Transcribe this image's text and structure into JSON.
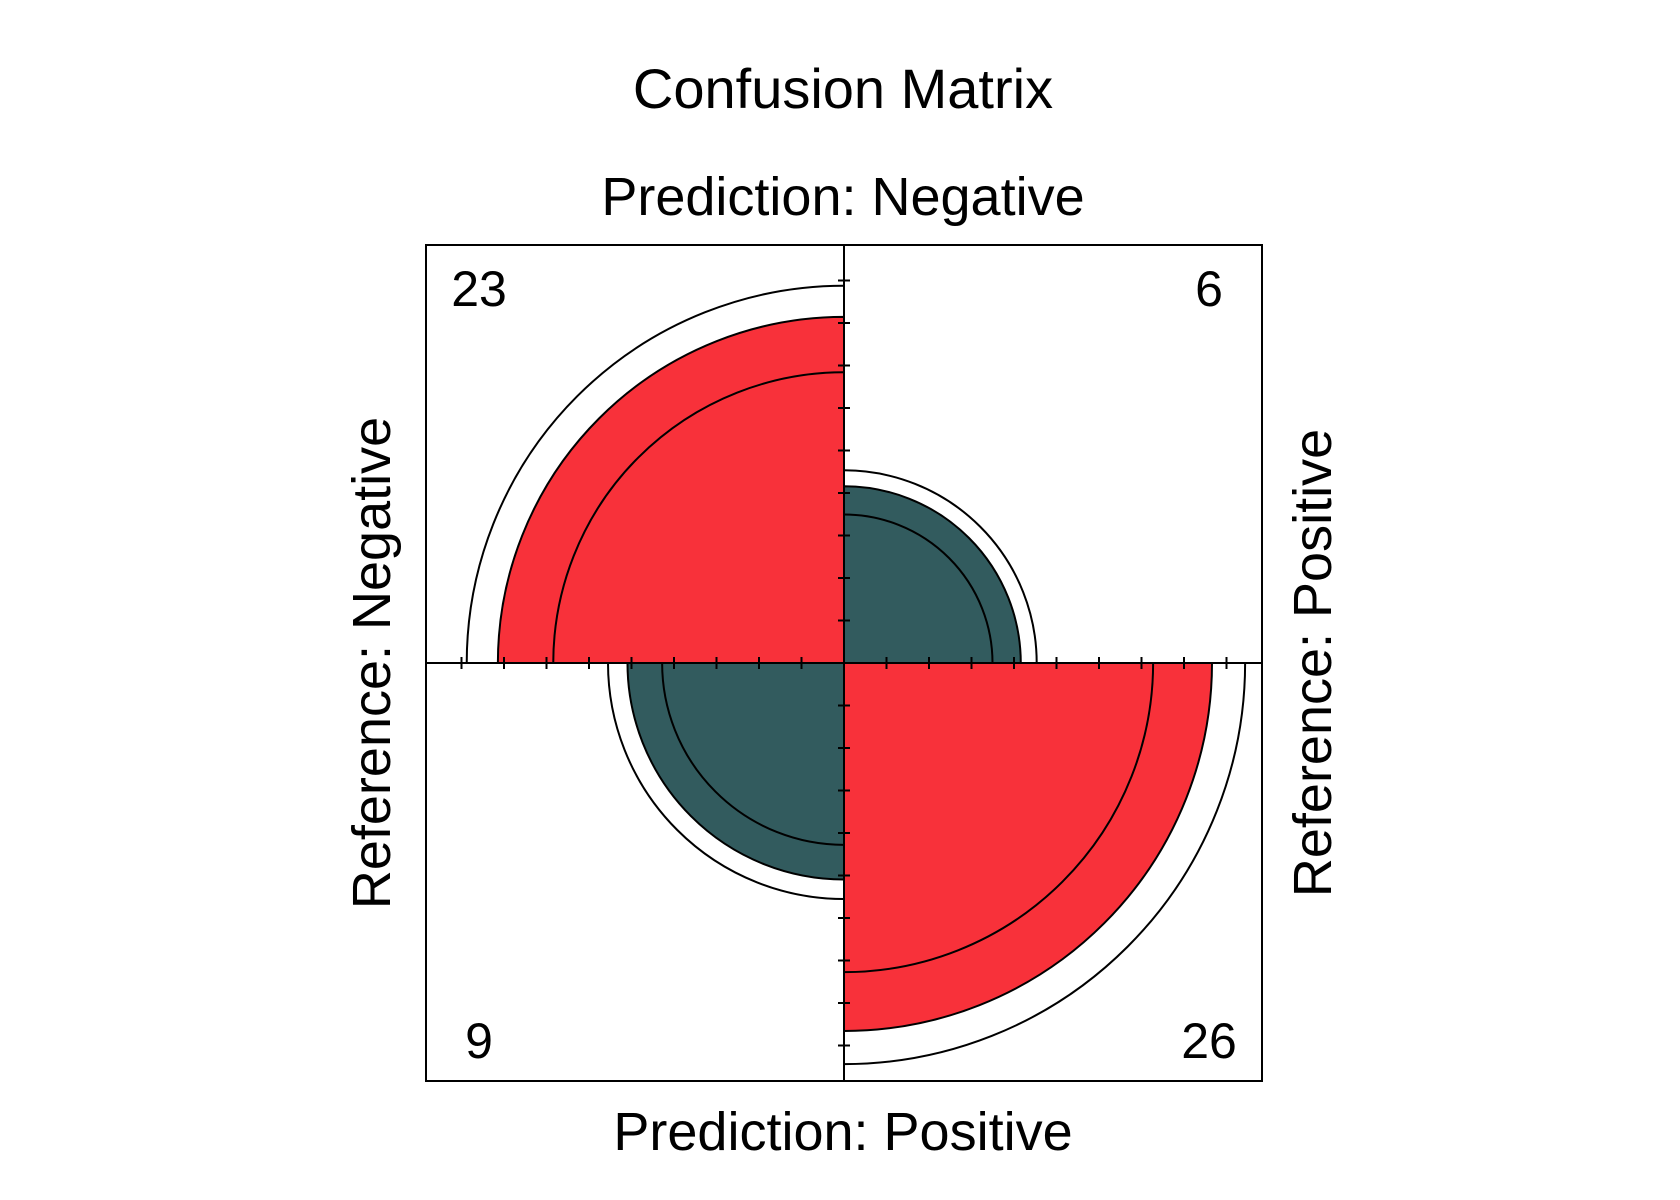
{
  "chart_data": {
    "type": "fourfold",
    "title": "Confusion Matrix",
    "top_label": "Prediction: Negative",
    "bottom_label": "Prediction: Positive",
    "left_label": "Reference: Negative",
    "right_label": "Reference: Positive",
    "cells": [
      {
        "position": "top-left",
        "count": 23,
        "correct": true
      },
      {
        "position": "top-right",
        "count": 6,
        "correct": false
      },
      {
        "position": "bottom-left",
        "count": 9,
        "correct": false
      },
      {
        "position": "bottom-right",
        "count": 26,
        "correct": true
      }
    ],
    "colors": {
      "correct": "#F8313A",
      "incorrect": "#325B5E",
      "stroke": "#000000",
      "background": "#ffffff"
    }
  }
}
